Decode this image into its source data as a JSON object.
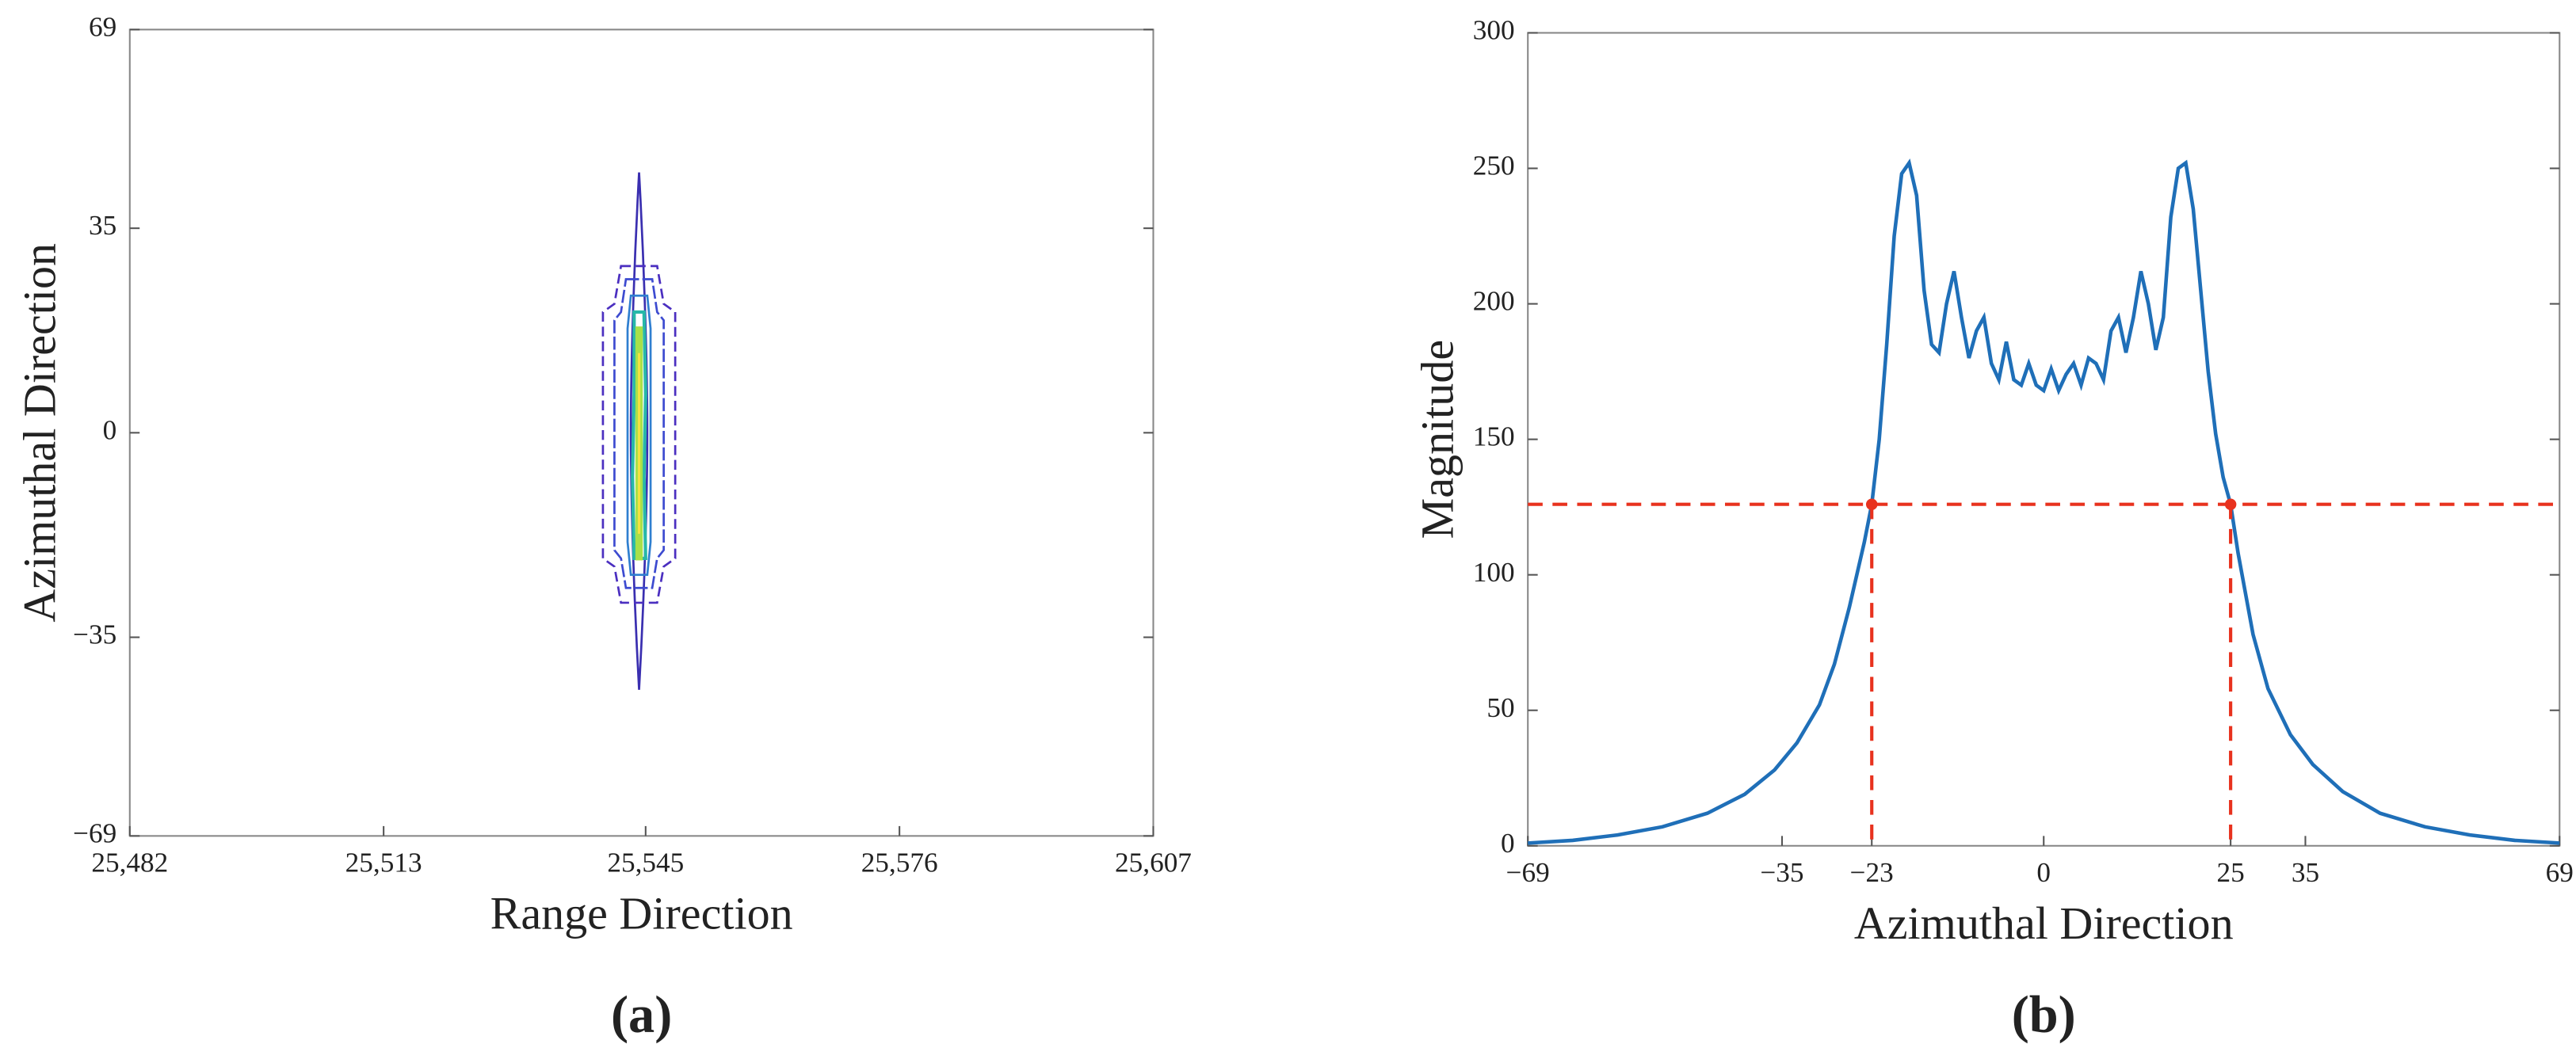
{
  "chart_data": [
    {
      "type": "contour",
      "xlabel": "Range Direction",
      "ylabel": "Azimuthal Direction",
      "caption": "(a)",
      "xlim": [
        25482,
        25607
      ],
      "xticks": [
        {
          "value": 25482,
          "label": "25,482"
        },
        {
          "value": 25513,
          "label": "25,513"
        },
        {
          "value": 25545,
          "label": "25,545"
        },
        {
          "value": 25576,
          "label": "25,576"
        },
        {
          "value": 25607,
          "label": "25,607"
        }
      ],
      "ylim": [
        -69,
        69
      ],
      "yticks": [
        {
          "value": -69,
          "label": "−69"
        },
        {
          "value": -35,
          "label": "−35"
        },
        0,
        35,
        69
      ]
    },
    {
      "type": "line",
      "xlabel": "Azimuthal Direction",
      "ylabel": "Magnitude",
      "caption": "(b)",
      "xlim": [
        -69,
        69
      ],
      "xticks": [
        {
          "value": -69,
          "label": "−69"
        },
        {
          "value": -35,
          "label": "−35"
        },
        {
          "value": -23,
          "label": "−23"
        },
        0,
        25,
        35,
        69
      ],
      "ylim": [
        0,
        300
      ],
      "yticks": [
        0,
        50,
        100,
        150,
        200,
        250,
        300
      ],
      "x": [
        -69,
        -63,
        -57,
        -51,
        -45,
        -40,
        -36,
        -33,
        -30,
        -28,
        -26,
        -24,
        -23,
        -22,
        -21,
        -20,
        -19,
        -18,
        -17,
        -16,
        -15,
        -14,
        -13,
        -12,
        -11,
        -10,
        -9,
        -8,
        -7,
        -6,
        -5,
        -4,
        -3,
        -2,
        -1,
        0,
        1,
        2,
        3,
        4,
        5,
        6,
        7,
        8,
        9,
        10,
        11,
        12,
        13,
        14,
        15,
        16,
        17,
        18,
        19,
        20,
        21,
        22,
        23,
        24,
        25,
        26,
        28,
        30,
        33,
        36,
        40,
        45,
        51,
        57,
        63,
        69
      ],
      "series": [
        {
          "color": "#1f6fb8",
          "values": [
            1,
            2,
            4,
            7,
            12,
            19,
            28,
            38,
            52,
            67,
            88,
            112,
            126,
            150,
            185,
            225,
            248,
            252,
            240,
            205,
            185,
            182,
            200,
            212,
            195,
            180,
            190,
            195,
            178,
            172,
            186,
            172,
            170,
            178,
            170,
            168,
            176,
            168,
            174,
            178,
            170,
            180,
            178,
            172,
            190,
            195,
            182,
            195,
            212,
            200,
            183,
            195,
            232,
            250,
            252,
            235,
            205,
            175,
            152,
            136,
            126,
            108,
            78,
            58,
            41,
            30,
            20,
            12,
            7,
            4,
            2,
            1
          ]
        }
      ],
      "reference_lines": {
        "color": "#e8321e",
        "y": 126,
        "x": [
          -23,
          25
        ]
      }
    }
  ]
}
